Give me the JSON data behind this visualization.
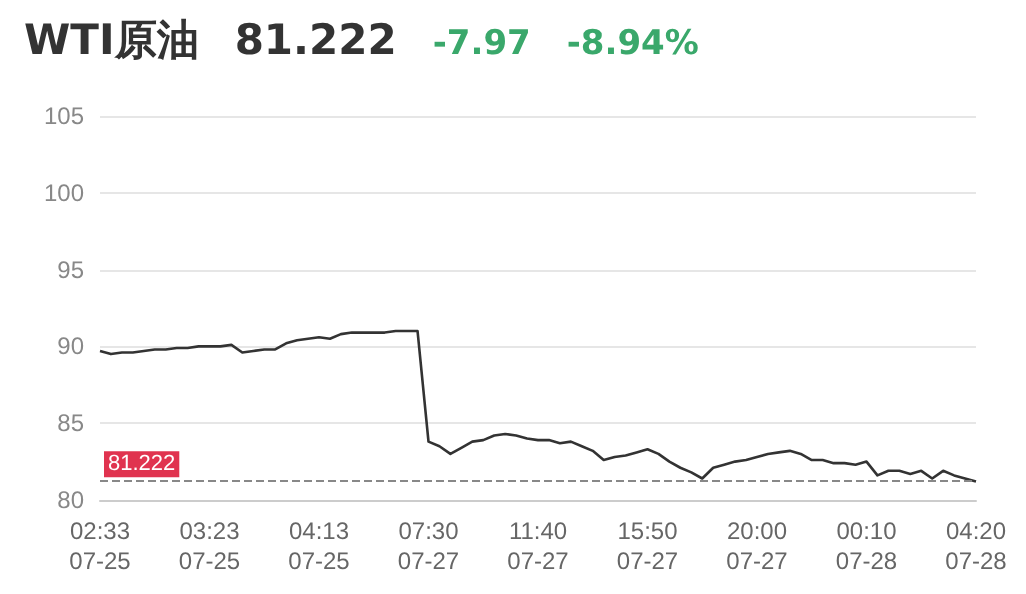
{
  "chart_data": {
    "type": "line",
    "title": "WTI原油",
    "annotations": [
      "81.222",
      "-7.97",
      "-8.94%"
    ],
    "categories": [
      "02:33\n07-25",
      null,
      null,
      null,
      null,
      null,
      null,
      null,
      null,
      null,
      "03:23\n07-25",
      null,
      null,
      null,
      null,
      null,
      null,
      null,
      null,
      null,
      "04:13\n07-25",
      null,
      null,
      null,
      null,
      null,
      null,
      null,
      null,
      null,
      "07:30\n07-27",
      null,
      null,
      null,
      null,
      null,
      null,
      null,
      null,
      null,
      "11:40\n07-27",
      null,
      null,
      null,
      null,
      null,
      null,
      null,
      null,
      null,
      "15:50\n07-27",
      null,
      null,
      null,
      null,
      null,
      null,
      null,
      null,
      null,
      "20:00\n07-27",
      null,
      null,
      null,
      null,
      null,
      null,
      null,
      null,
      null,
      "00:10\n07-28",
      null,
      null,
      null,
      null,
      null,
      null,
      null,
      null,
      null,
      "04:20\n07-28"
    ],
    "series": [
      {
        "color": "#333333",
        "values": [
          89.7,
          89.5,
          89.6,
          89.6,
          89.7,
          89.8,
          89.8,
          89.9,
          89.9,
          90.0,
          90.0,
          90.0,
          90.1,
          89.6,
          89.7,
          89.8,
          89.8,
          90.2,
          90.4,
          90.5,
          90.6,
          90.5,
          90.8,
          90.9,
          90.9,
          90.9,
          90.9,
          91.0,
          91.0,
          91.0,
          83.8,
          83.5,
          83.0,
          83.4,
          83.8,
          83.9,
          84.2,
          84.3,
          84.2,
          84.0,
          83.9,
          83.9,
          83.7,
          83.8,
          83.5,
          83.2,
          82.6,
          82.8,
          82.9,
          83.1,
          83.3,
          83.0,
          82.5,
          82.1,
          81.8,
          81.4,
          82.1,
          82.3,
          82.5,
          82.6,
          82.8,
          83.0,
          83.1,
          83.2,
          83.0,
          82.6,
          82.6,
          82.4,
          82.4,
          82.3,
          82.5,
          81.6,
          81.9,
          81.9,
          81.7,
          81.9,
          81.4,
          81.9,
          81.6,
          81.4,
          81.2
        ]
      }
    ],
    "ylim": [
      80,
      105
    ],
    "yticks": [
      80,
      85,
      90,
      95,
      100,
      105
    ],
    "grid": "y",
    "marker": "none",
    "line_style": "solid",
    "ref_lines": [
      {
        "axis": "y",
        "value": 81.222,
        "label": "81.222",
        "color": "#888888",
        "line_style": "dashed"
      }
    ]
  }
}
